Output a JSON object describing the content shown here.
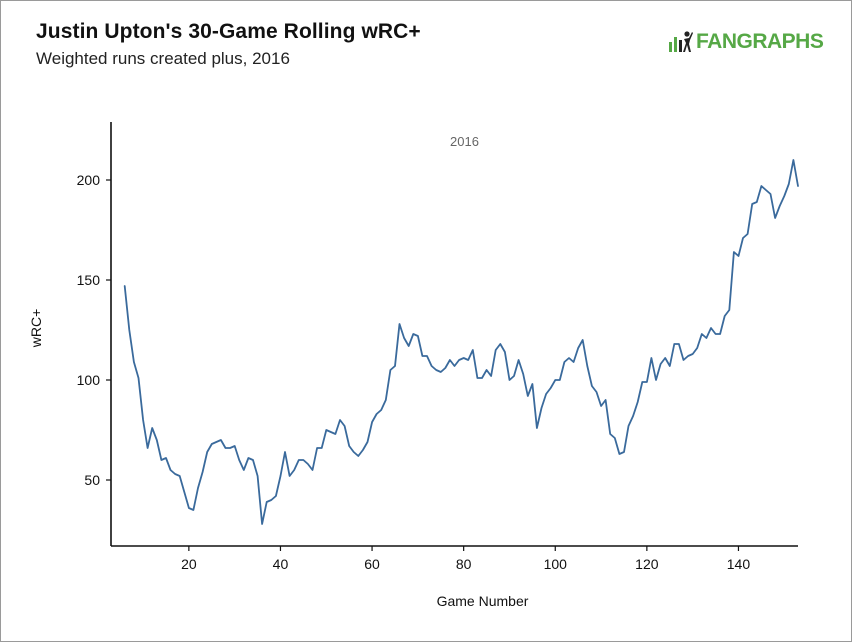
{
  "header": {
    "title": "Justin Upton's 30-Game Rolling wRC+",
    "subtitle": "Weighted runs created plus, 2016",
    "brand": "FANGRAPHS",
    "brand_color": "#56a846"
  },
  "chart_data": {
    "type": "line",
    "title": "Justin Upton's 30-Game Rolling wRC+",
    "subtitle": "Weighted runs created plus, 2016",
    "facet_label": "2016",
    "xlabel": "Game Number",
    "ylabel": "wRC+",
    "xlim": [
      3,
      153
    ],
    "ylim": [
      17,
      229
    ],
    "x_ticks": [
      20,
      40,
      60,
      80,
      100,
      120,
      140
    ],
    "y_ticks": [
      50,
      100,
      150,
      200
    ],
    "x_tick_labels": [
      "20",
      "40",
      "60",
      "80",
      "100",
      "120",
      "140"
    ],
    "y_tick_labels": [
      "50",
      "100",
      "150",
      "200"
    ],
    "grid": false,
    "line_color": "#3a6a9c",
    "series": [
      {
        "x": [
          6,
          7,
          8,
          9,
          10,
          11,
          12,
          13,
          14,
          15,
          16,
          17,
          18,
          19,
          20,
          21,
          22,
          23,
          24,
          25,
          26,
          27,
          28,
          29,
          30,
          31,
          32,
          33,
          34,
          35,
          36,
          37,
          38,
          39,
          40,
          41,
          42,
          43,
          44,
          45,
          46,
          47,
          48,
          49,
          50,
          51,
          52,
          53,
          54,
          55,
          56,
          57,
          58,
          59,
          60,
          61,
          62,
          63,
          64,
          65,
          66,
          67,
          68,
          69,
          70,
          71,
          72,
          73,
          74,
          75,
          76,
          77,
          78,
          79,
          80,
          81,
          82,
          83,
          84,
          85,
          86,
          87,
          88,
          89,
          90,
          91,
          92,
          93,
          94,
          95,
          96,
          97,
          98,
          99,
          100,
          101,
          102,
          103,
          104,
          105,
          106,
          107,
          108,
          109,
          110,
          111,
          112,
          113,
          114,
          115,
          116,
          117,
          118,
          119,
          120,
          121,
          122,
          123,
          124,
          125,
          126,
          127,
          128,
          129,
          130,
          131,
          132,
          133,
          134,
          135,
          136,
          137,
          138,
          139,
          140,
          141,
          142,
          143,
          144,
          145,
          146,
          147,
          148,
          149,
          150,
          151,
          152,
          153
        ],
        "y": [
          147,
          125,
          109,
          101,
          80,
          66,
          76,
          70,
          60,
          61,
          55,
          53,
          52,
          44,
          36,
          35,
          46,
          54,
          64,
          68,
          69,
          70,
          66,
          66,
          67,
          60,
          55,
          61,
          60,
          52,
          28,
          39,
          40,
          42,
          52,
          64,
          52,
          55,
          60,
          60,
          58,
          55,
          66,
          66,
          75,
          74,
          73,
          80,
          77,
          67,
          64,
          62,
          65,
          69,
          79,
          83,
          85,
          90,
          105,
          107,
          128,
          121,
          117,
          123,
          122,
          112,
          112,
          107,
          105,
          104,
          106,
          110,
          107,
          110,
          111,
          110,
          115,
          101,
          101,
          105,
          102,
          115,
          118,
          114,
          100,
          102,
          110,
          103,
          92,
          98,
          76,
          86,
          93,
          96,
          100,
          100,
          109,
          111,
          109,
          116,
          120,
          107,
          97,
          94,
          87,
          90,
          73,
          71,
          63,
          64,
          77,
          82,
          89,
          99,
          99,
          111,
          100,
          108,
          111,
          107,
          118,
          118,
          110,
          112,
          113,
          116,
          123,
          121,
          126,
          123,
          123,
          132,
          135,
          164,
          162,
          171,
          173,
          188,
          189,
          197,
          195,
          193,
          181,
          187,
          192,
          198,
          210,
          197
        ]
      }
    ]
  }
}
